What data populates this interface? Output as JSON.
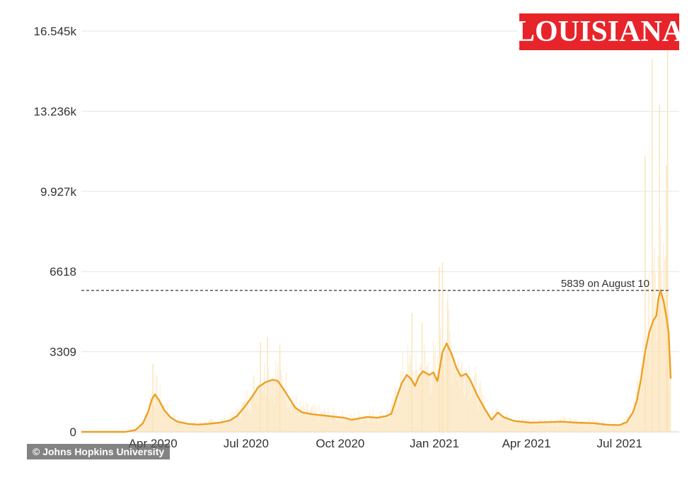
{
  "badge": {
    "text": "LOUISIANA",
    "bg": "#e8242b"
  },
  "credit": "© Johns Hopkins University",
  "colors": {
    "line": "#ee9f24",
    "bars": "#fbe3b8",
    "grid": "#e6e6e6",
    "dash": "#333333"
  },
  "chart_data": {
    "type": "line",
    "title": "",
    "xlabel": "",
    "ylabel": "",
    "x_tick_labels": [
      "Apr 2020",
      "Jul 2020",
      "Oct 2020",
      "Jan 2021",
      "Apr 2021",
      "Jul 2021"
    ],
    "y_tick_labels": [
      "0",
      "3309",
      "6618",
      "9.927k",
      "13.236k",
      "16.545k"
    ],
    "y_ticks": [
      0,
      3309,
      6618,
      9927,
      13236,
      16545
    ],
    "ylim": [
      0,
      16545
    ],
    "xlim": [
      "2020-01-22",
      "2021-08-20"
    ],
    "grid": true,
    "annotation": {
      "text": "5839 on August 10",
      "value": 5839,
      "date": "2021-08-10"
    },
    "series": [
      {
        "kind": "7-day average",
        "points": [
          [
            "2020-01-22",
            0
          ],
          [
            "2020-03-05",
            0
          ],
          [
            "2020-03-15",
            80
          ],
          [
            "2020-03-22",
            350
          ],
          [
            "2020-03-27",
            800
          ],
          [
            "2020-03-31",
            1350
          ],
          [
            "2020-04-03",
            1550
          ],
          [
            "2020-04-07",
            1300
          ],
          [
            "2020-04-12",
            900
          ],
          [
            "2020-04-18",
            600
          ],
          [
            "2020-04-25",
            420
          ],
          [
            "2020-05-05",
            330
          ],
          [
            "2020-05-15",
            300
          ],
          [
            "2020-05-25",
            330
          ],
          [
            "2020-06-05",
            380
          ],
          [
            "2020-06-15",
            470
          ],
          [
            "2020-06-22",
            650
          ],
          [
            "2020-06-29",
            1000
          ],
          [
            "2020-07-06",
            1400
          ],
          [
            "2020-07-13",
            1850
          ],
          [
            "2020-07-20",
            2050
          ],
          [
            "2020-07-27",
            2150
          ],
          [
            "2020-08-01",
            2100
          ],
          [
            "2020-08-06",
            1800
          ],
          [
            "2020-08-12",
            1400
          ],
          [
            "2020-08-18",
            1000
          ],
          [
            "2020-08-25",
            800
          ],
          [
            "2020-09-05",
            720
          ],
          [
            "2020-09-20",
            650
          ],
          [
            "2020-10-05",
            580
          ],
          [
            "2020-10-12",
            500
          ],
          [
            "2020-10-20",
            560
          ],
          [
            "2020-10-28",
            620
          ],
          [
            "2020-11-06",
            580
          ],
          [
            "2020-11-15",
            650
          ],
          [
            "2020-11-20",
            750
          ],
          [
            "2020-11-25",
            1400
          ],
          [
            "2020-11-30",
            2000
          ],
          [
            "2020-12-05",
            2350
          ],
          [
            "2020-12-09",
            2200
          ],
          [
            "2020-12-13",
            1900
          ],
          [
            "2020-12-17",
            2300
          ],
          [
            "2020-12-21",
            2500
          ],
          [
            "2020-12-27",
            2350
          ],
          [
            "2020-12-31",
            2450
          ],
          [
            "2021-01-04",
            2100
          ],
          [
            "2021-01-09",
            3300
          ],
          [
            "2021-01-13",
            3650
          ],
          [
            "2021-01-18",
            3200
          ],
          [
            "2021-01-23",
            2600
          ],
          [
            "2021-01-27",
            2300
          ],
          [
            "2021-02-01",
            2400
          ],
          [
            "2021-02-05",
            2150
          ],
          [
            "2021-02-12",
            1500
          ],
          [
            "2021-02-20",
            900
          ],
          [
            "2021-02-26",
            500
          ],
          [
            "2021-03-04",
            800
          ],
          [
            "2021-03-10",
            600
          ],
          [
            "2021-03-20",
            450
          ],
          [
            "2021-04-05",
            380
          ],
          [
            "2021-04-20",
            400
          ],
          [
            "2021-05-05",
            420
          ],
          [
            "2021-05-20",
            380
          ],
          [
            "2021-06-05",
            360
          ],
          [
            "2021-06-20",
            290
          ],
          [
            "2021-07-01",
            280
          ],
          [
            "2021-07-08",
            400
          ],
          [
            "2021-07-14",
            800
          ],
          [
            "2021-07-18",
            1300
          ],
          [
            "2021-07-22",
            2200
          ],
          [
            "2021-07-26",
            3300
          ],
          [
            "2021-07-30",
            4100
          ],
          [
            "2021-08-03",
            4600
          ],
          [
            "2021-08-06",
            4800
          ],
          [
            "2021-08-08",
            5500
          ],
          [
            "2021-08-10",
            5839
          ],
          [
            "2021-08-13",
            5400
          ],
          [
            "2021-08-16",
            4700
          ],
          [
            "2021-08-18",
            4100
          ],
          [
            "2021-08-20",
            2200
          ]
        ]
      },
      {
        "kind": "daily cases (faint bars)",
        "peaks": [
          [
            "2020-04-01",
            2800
          ],
          [
            "2020-07-15",
            3700
          ],
          [
            "2020-07-22",
            3900
          ],
          [
            "2020-08-03",
            3600
          ],
          [
            "2020-12-10",
            4900
          ],
          [
            "2020-12-20",
            4500
          ],
          [
            "2021-01-06",
            6800
          ],
          [
            "2021-01-09",
            7000
          ],
          [
            "2021-01-14",
            5400
          ],
          [
            "2021-07-26",
            11400
          ],
          [
            "2021-08-02",
            15400
          ],
          [
            "2021-08-09",
            13500
          ],
          [
            "2021-08-16",
            11000
          ],
          [
            "2021-08-17",
            16545
          ]
        ]
      }
    ]
  }
}
